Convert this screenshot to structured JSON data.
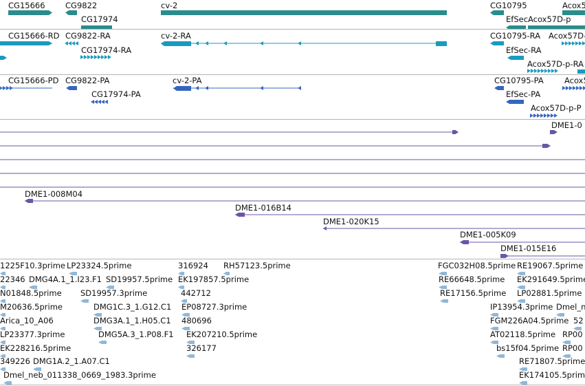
{
  "colors": {
    "gene": "#2a8c8c",
    "transcript_ra": "#1a9bbd",
    "transcript_pa": "#3566bf",
    "clone": "#6a55a6",
    "est": "#8fb8d8",
    "divider": "#b4b4b4"
  },
  "tracks": {
    "genes": {
      "labels": [
        "CG15666",
        "CG9822",
        "CG17974",
        "cv-2",
        "CG10795",
        "Acox5",
        "EfSec",
        "Acox57D-p"
      ]
    },
    "transcripts_ra": {
      "labels": [
        "CG15666-RD",
        "CG9822-RA",
        "CG17974-RA",
        "cv-2-RA",
        "CG10795-RA",
        "Acox57D-",
        "EfSec-RA",
        "Acox57D-p-RA"
      ]
    },
    "transcripts_pa": {
      "labels": [
        "CG15666-PD",
        "CG9822-PA",
        "CG17974-PA",
        "cv-2-PA",
        "CG10795-PA",
        "Acox5",
        "EfSec-PA",
        "Acox57D-p-P"
      ]
    },
    "clones": {
      "labels": [
        "DME1-0",
        "DME1-008M04",
        "DME1-016B14",
        "DME1-020K15",
        "DME1-005K09",
        "DME1-015E16"
      ]
    },
    "ests": {
      "labels": [
        "1225F10.3prime",
        "LP23324.5prime",
        "316924",
        "RH57123.5prime",
        "FGC032H08.5prime",
        "RE19067.5prime",
        "22346",
        "DMG4A.1_1.I23.F1",
        "SD19957.5prime",
        "EK197857.5prime",
        "RE66648.5prime",
        "EK291649.5prime",
        "N01848.5prime",
        "442712",
        "RE17156.5prime",
        "LP02881.5prime",
        "SD19957.3prime",
        "M20636.5prime",
        "DMG1C.3_1.G12.C1",
        "EP08727.3prime",
        "IP13954.3prime",
        "Dmel_n",
        "Arica_10_A06",
        "DMG3A.1_1.H05.C1",
        "480696",
        "FGM226A04.5prime",
        "52",
        "LP23377.3prime",
        "DMG5A.3_1.P08.F1",
        "EK207210.5prime",
        "AT02118.5prime",
        "RP00",
        "EK228216.5prime",
        "326177",
        "bs15f04.5prime",
        "RP00",
        "349226",
        "DMG1A.2_1.A07.C1",
        "RE71807.5prime",
        "Dmel_neb_011338_0669_1983.3prime",
        "EK174105.5prime"
      ]
    }
  }
}
